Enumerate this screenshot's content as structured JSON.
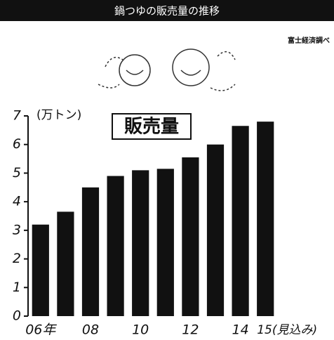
{
  "chart_data": {
    "type": "bar",
    "title": "鍋つゆの販売量の推移",
    "source": "富士経済調べ",
    "y_label": "(万トン)",
    "annotation": "販売量",
    "categories": [
      "06年",
      null,
      "08",
      null,
      "10",
      null,
      "12",
      null,
      "14",
      "15(見込み)"
    ],
    "values": [
      3.2,
      3.65,
      4.5,
      4.9,
      5.1,
      5.15,
      5.55,
      6.0,
      6.65,
      6.8
    ],
    "color": "#111111",
    "ylim": [
      0,
      7
    ],
    "yticks": [
      0,
      1,
      2,
      3,
      4,
      5,
      6,
      7
    ],
    "grid": false
  }
}
